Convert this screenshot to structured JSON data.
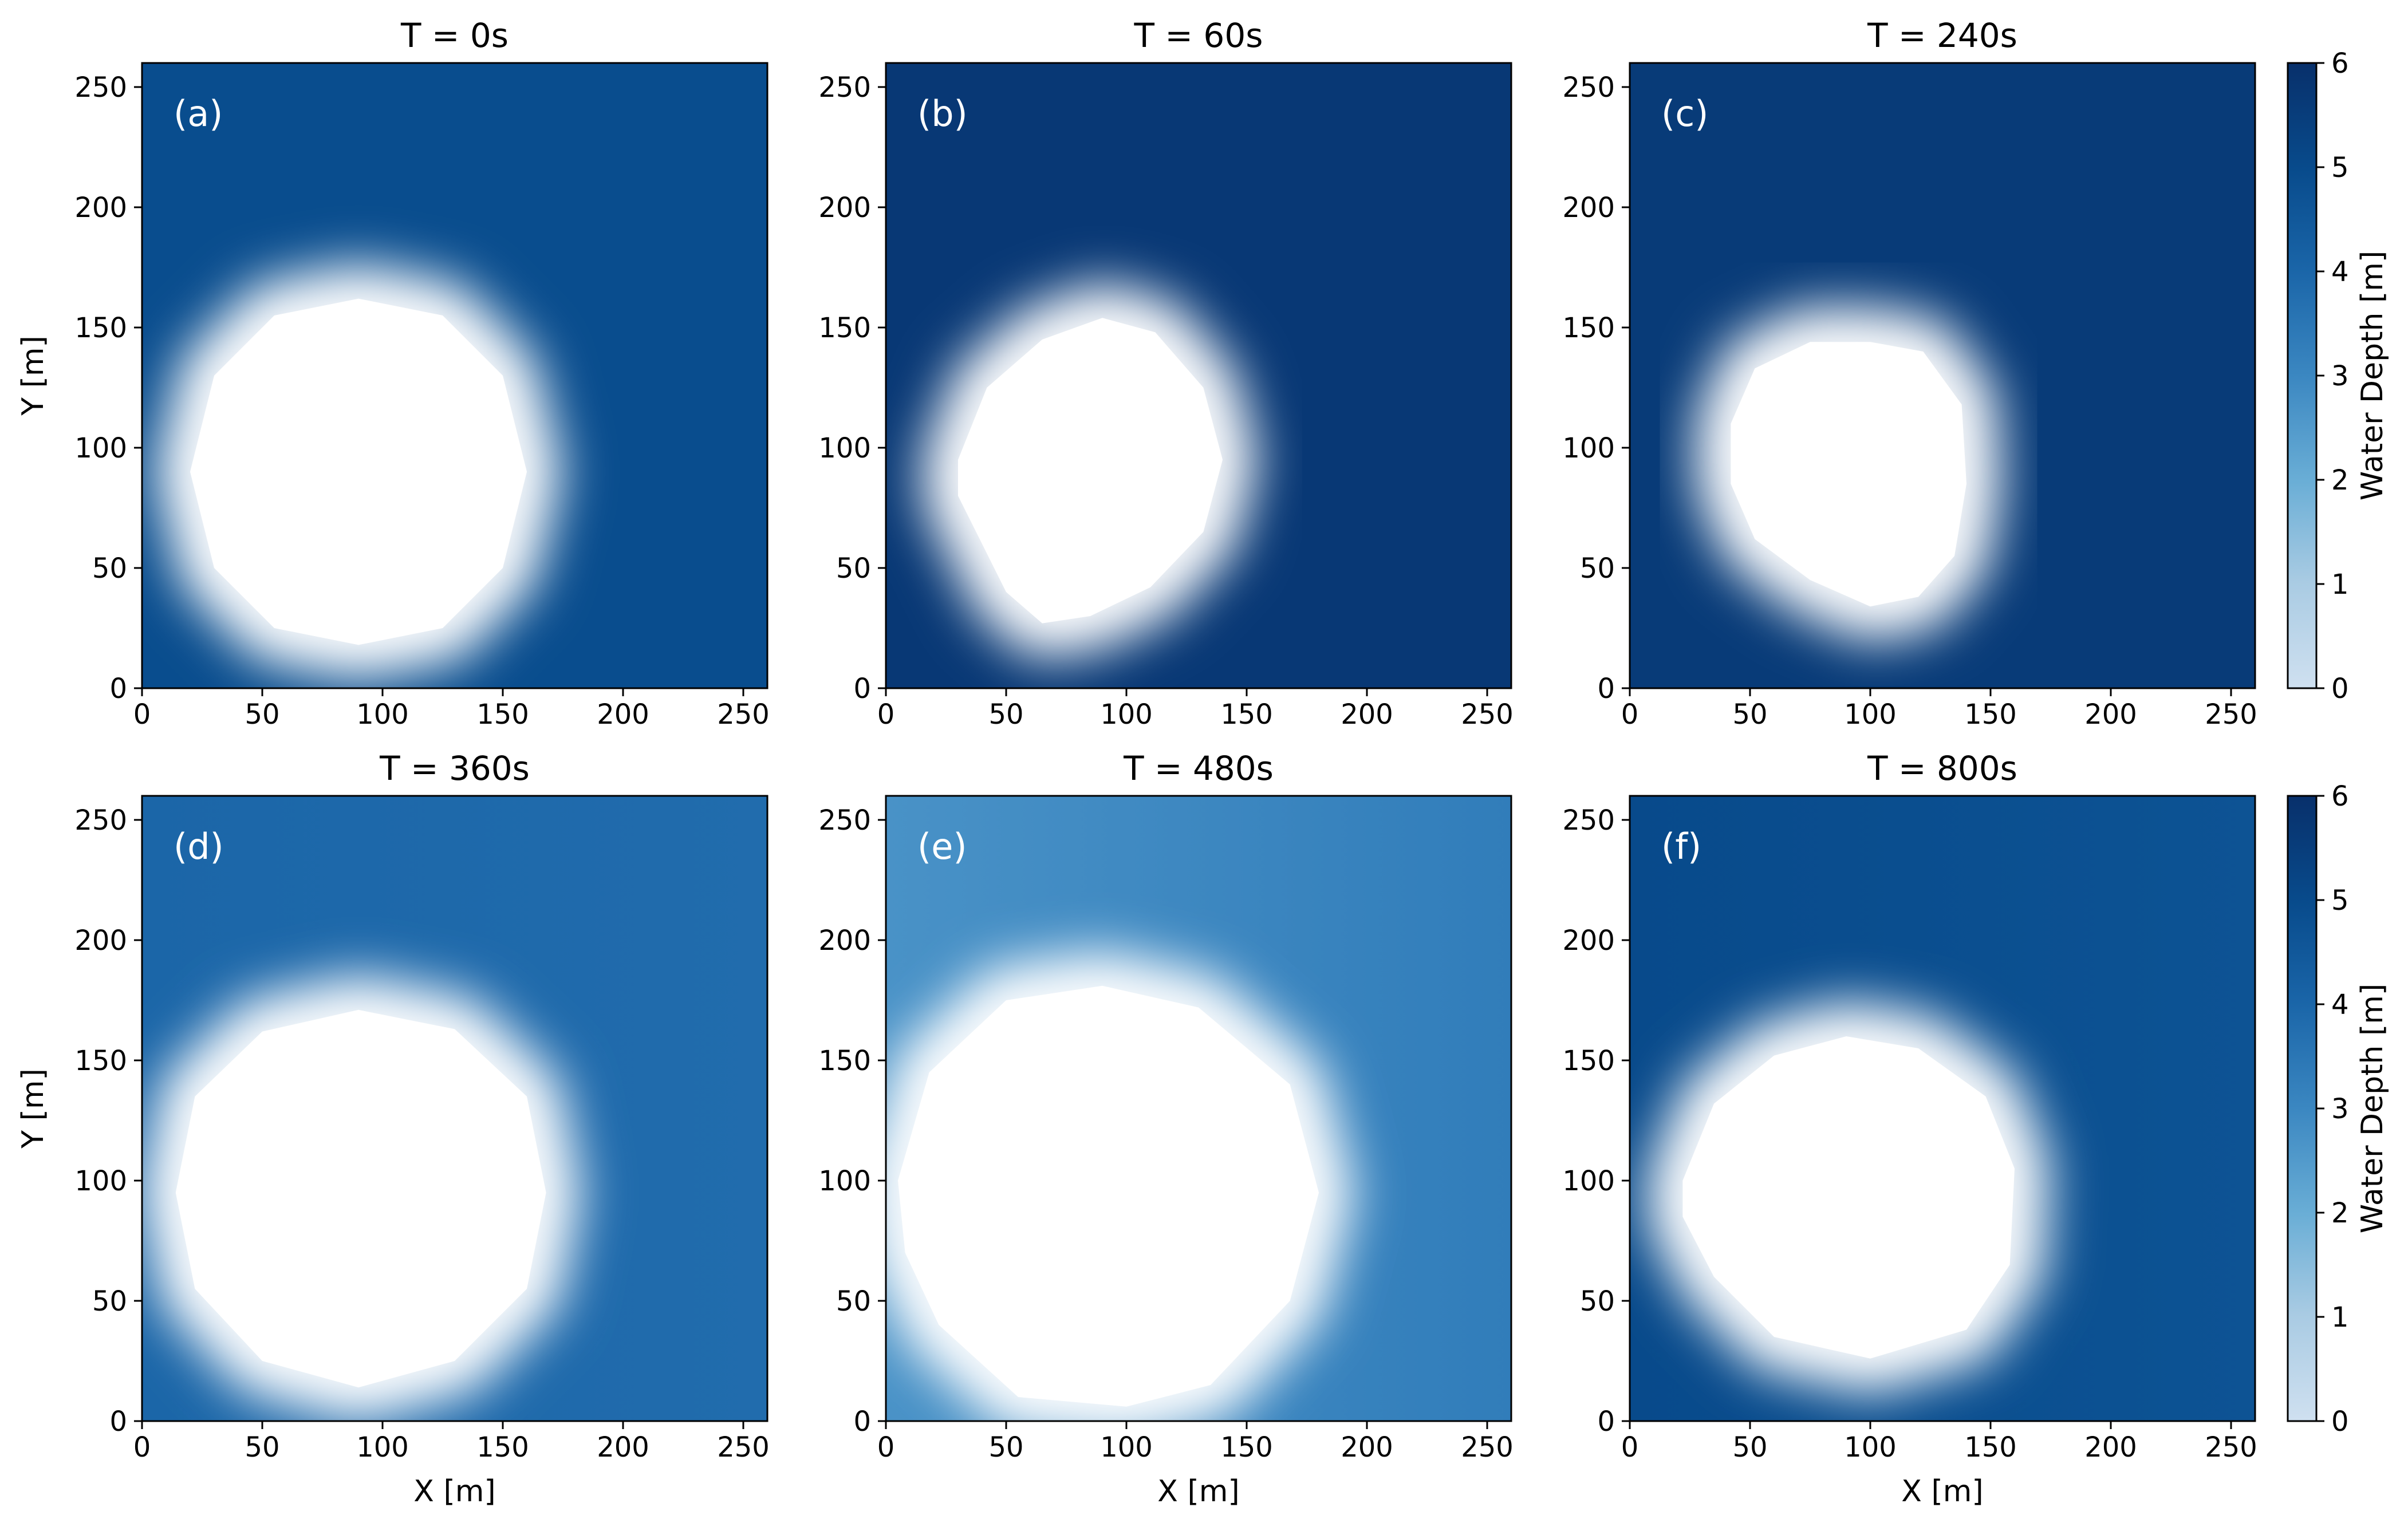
{
  "figure": {
    "colorbar_label": "Water Depth [m]",
    "colorbar_ticks": [
      "0",
      "1",
      "2",
      "3",
      "4",
      "5",
      "6"
    ]
  },
  "chart_data": [
    {
      "type": "heatmap",
      "title": "T = 0s",
      "panel_label": "(a)",
      "xlabel": "",
      "ylabel": "Y [m]",
      "xlim": [
        0,
        260
      ],
      "ylim": [
        0,
        260
      ],
      "xticks": [
        "0",
        "50",
        "100",
        "150",
        "200",
        "250"
      ],
      "yticks": [
        "0",
        "50",
        "100",
        "150",
        "200",
        "250"
      ],
      "background_depth": 4.9,
      "background_depth_right": 4.9,
      "dry_region": [
        [
          20,
          90
        ],
        [
          30,
          130
        ],
        [
          55,
          155
        ],
        [
          90,
          162
        ],
        [
          125,
          155
        ],
        [
          150,
          130
        ],
        [
          160,
          90
        ],
        [
          150,
          50
        ],
        [
          125,
          25
        ],
        [
          90,
          18
        ],
        [
          55,
          25
        ],
        [
          30,
          50
        ]
      ]
    },
    {
      "type": "heatmap",
      "title": "T = 60s",
      "panel_label": "(b)",
      "xlabel": "",
      "ylabel": "",
      "xlim": [
        0,
        260
      ],
      "ylim": [
        0,
        260
      ],
      "xticks": [
        "0",
        "50",
        "100",
        "150",
        "200",
        "250"
      ],
      "yticks": [
        "0",
        "50",
        "100",
        "150",
        "200",
        "250"
      ],
      "background_depth": 5.7,
      "background_depth_right": 5.7,
      "dry_region": [
        [
          30,
          95
        ],
        [
          42,
          125
        ],
        [
          65,
          145
        ],
        [
          90,
          154
        ],
        [
          112,
          148
        ],
        [
          132,
          125
        ],
        [
          140,
          95
        ],
        [
          132,
          65
        ],
        [
          110,
          42
        ],
        [
          85,
          30
        ],
        [
          65,
          27
        ],
        [
          50,
          40
        ],
        [
          40,
          60
        ],
        [
          30,
          80
        ]
      ]
    },
    {
      "type": "heatmap",
      "title": "T = 240s",
      "panel_label": "(c)",
      "xlabel": "",
      "ylabel": "",
      "xlim": [
        0,
        260
      ],
      "ylim": [
        0,
        260
      ],
      "xticks": [
        "0",
        "50",
        "100",
        "150",
        "200",
        "250"
      ],
      "yticks": [
        "0",
        "50",
        "100",
        "150",
        "200",
        "250"
      ],
      "background_depth": 5.6,
      "background_depth_right": 5.6,
      "dry_region": [
        [
          42,
          110
        ],
        [
          52,
          133
        ],
        [
          75,
          144
        ],
        [
          100,
          144
        ],
        [
          122,
          140
        ],
        [
          138,
          118
        ],
        [
          140,
          85
        ],
        [
          135,
          55
        ],
        [
          120,
          38
        ],
        [
          100,
          34
        ],
        [
          75,
          45
        ],
        [
          52,
          62
        ],
        [
          42,
          85
        ]
      ]
    },
    {
      "type": "heatmap",
      "title": "T = 360s",
      "panel_label": "(d)",
      "xlabel": "X [m]",
      "ylabel": "Y [m]",
      "xlim": [
        0,
        260
      ],
      "ylim": [
        0,
        260
      ],
      "xticks": [
        "0",
        "50",
        "100",
        "150",
        "200",
        "250"
      ],
      "yticks": [
        "0",
        "50",
        "100",
        "150",
        "200",
        "250"
      ],
      "background_depth": 4.0,
      "background_depth_right": 3.8,
      "dry_region": [
        [
          14,
          95
        ],
        [
          22,
          135
        ],
        [
          50,
          162
        ],
        [
          90,
          171
        ],
        [
          130,
          163
        ],
        [
          160,
          135
        ],
        [
          168,
          95
        ],
        [
          160,
          55
        ],
        [
          130,
          25
        ],
        [
          90,
          14
        ],
        [
          50,
          25
        ],
        [
          22,
          55
        ]
      ]
    },
    {
      "type": "heatmap",
      "title": "T = 480s",
      "panel_label": "(e)",
      "xlabel": "X [m]",
      "ylabel": "",
      "xlim": [
        0,
        260
      ],
      "ylim": [
        0,
        260
      ],
      "xticks": [
        "0",
        "50",
        "100",
        "150",
        "200",
        "250"
      ],
      "yticks": [
        "0",
        "50",
        "100",
        "150",
        "200",
        "250"
      ],
      "background_depth": 2.7,
      "background_depth_right": 3.3,
      "dry_region": [
        [
          5,
          100
        ],
        [
          18,
          145
        ],
        [
          50,
          175
        ],
        [
          90,
          181
        ],
        [
          130,
          172
        ],
        [
          168,
          140
        ],
        [
          180,
          95
        ],
        [
          168,
          50
        ],
        [
          135,
          15
        ],
        [
          100,
          6
        ],
        [
          55,
          10
        ],
        [
          22,
          40
        ],
        [
          8,
          70
        ]
      ]
    },
    {
      "type": "heatmap",
      "title": "T = 800s",
      "panel_label": "(f)",
      "xlabel": "X [m]",
      "ylabel": "",
      "xlim": [
        0,
        260
      ],
      "ylim": [
        0,
        260
      ],
      "xticks": [
        "0",
        "50",
        "100",
        "150",
        "200",
        "250"
      ],
      "yticks": [
        "0",
        "50",
        "100",
        "150",
        "200",
        "250"
      ],
      "background_depth": 5.0,
      "background_depth_right": 4.7,
      "dry_region": [
        [
          22,
          100
        ],
        [
          35,
          132
        ],
        [
          60,
          152
        ],
        [
          90,
          160
        ],
        [
          120,
          155
        ],
        [
          148,
          135
        ],
        [
          160,
          105
        ],
        [
          158,
          65
        ],
        [
          140,
          38
        ],
        [
          100,
          26
        ],
        [
          60,
          35
        ],
        [
          35,
          60
        ],
        [
          22,
          85
        ]
      ]
    }
  ]
}
